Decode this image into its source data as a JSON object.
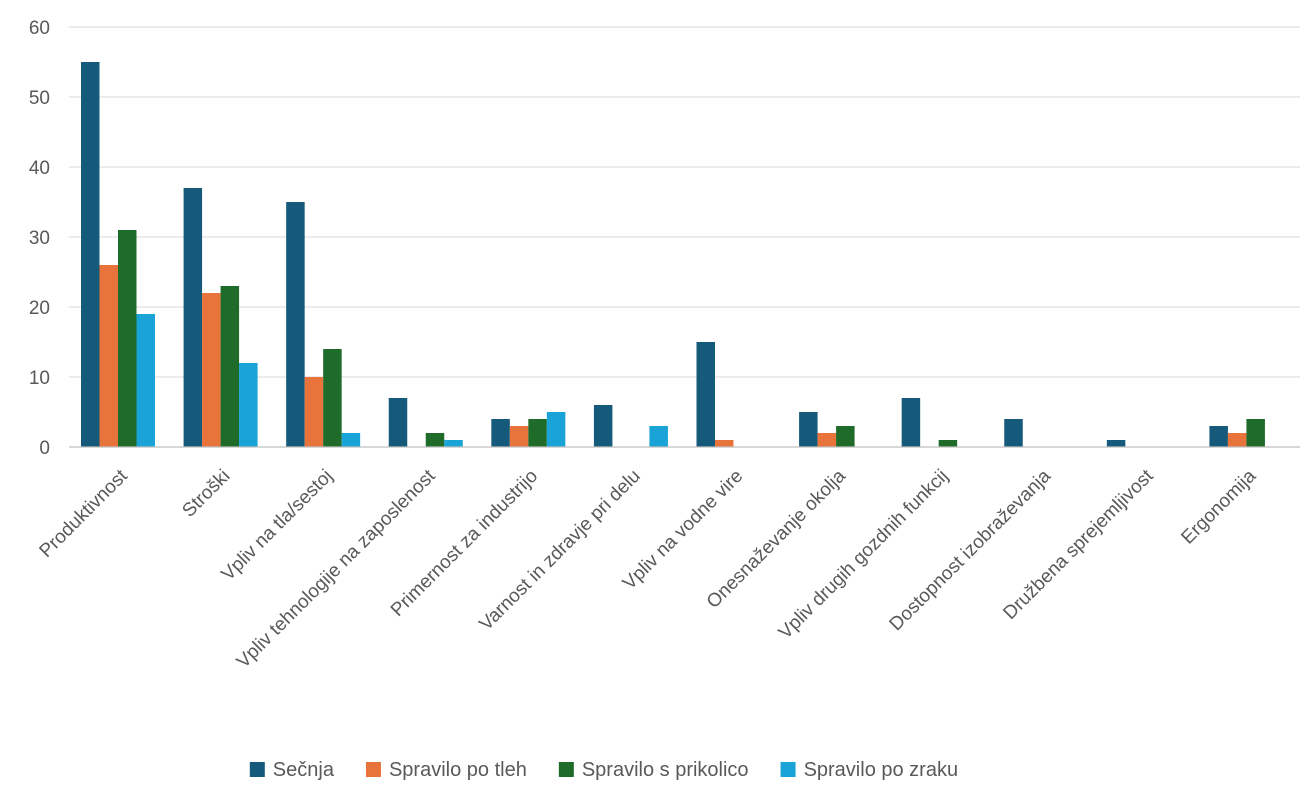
{
  "chart_data": {
    "type": "bar",
    "categories": [
      "Produktivnost",
      "Stroški",
      "Vpliv na tla/sestoj",
      "Vpliv tehnologije na zaposlenost",
      "Primernost za industrijo",
      "Varnost in zdravje pri delu",
      "Vpliv na vodne vire",
      "Onesnaževanje okolja",
      "Vpliv drugih gozdnih funkcij",
      "Dostopnost izobraževanja",
      "Družbena sprejemljivost",
      "Ergonomija"
    ],
    "series": [
      {
        "name": "Sečnja",
        "color": "#155a7a",
        "values": [
          55,
          37,
          35,
          7,
          4,
          6,
          15,
          5,
          7,
          4,
          1,
          3
        ]
      },
      {
        "name": "Spravilo po tleh",
        "color": "#e8743b",
        "values": [
          26,
          22,
          10,
          0,
          3,
          0,
          1,
          2,
          0,
          0,
          0,
          2
        ]
      },
      {
        "name": "Spravilo s prikolico",
        "color": "#1f6b2a",
        "values": [
          31,
          23,
          14,
          2,
          4,
          0,
          0,
          3,
          1,
          0,
          0,
          4
        ]
      },
      {
        "name": "Spravilo po zraku",
        "color": "#19a3d6",
        "values": [
          19,
          12,
          2,
          1,
          5,
          3,
          0,
          0,
          0,
          0,
          0,
          0
        ]
      }
    ],
    "title": "",
    "xlabel": "",
    "ylabel": "",
    "ylim": [
      0,
      60
    ],
    "yticks": [
      0,
      10,
      20,
      30,
      40,
      50,
      60
    ],
    "grid": true,
    "legend": "bottom"
  }
}
